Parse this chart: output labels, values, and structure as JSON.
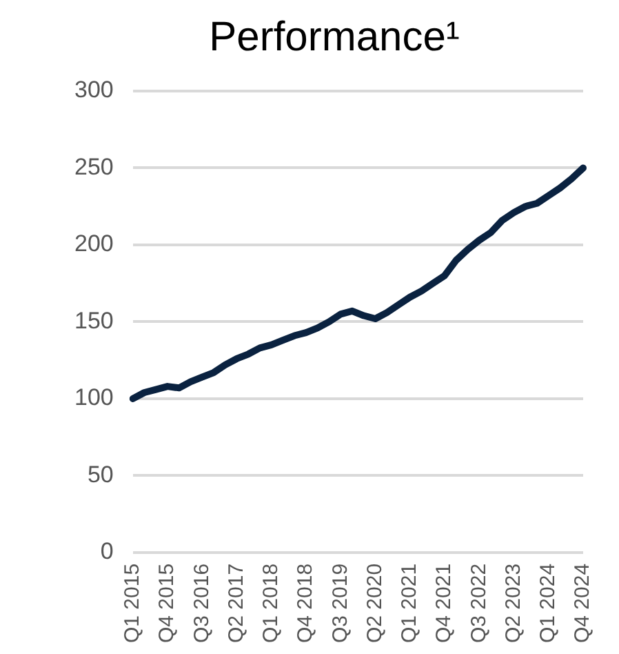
{
  "chart_data": {
    "type": "line",
    "title": "Performance¹",
    "categories": [
      "Q1 2015",
      null,
      null,
      "Q4 2015",
      null,
      null,
      "Q3 2016",
      null,
      null,
      "Q2 2017",
      null,
      null,
      "Q1 2018",
      null,
      null,
      "Q4 2018",
      null,
      null,
      "Q3 2019",
      null,
      null,
      "Q2 2020",
      null,
      null,
      "Q1 2021",
      null,
      null,
      "Q4 2021",
      null,
      null,
      "Q3 2022",
      null,
      null,
      "Q2 2023",
      null,
      null,
      "Q1 2024",
      null,
      null,
      "Q4 2024"
    ],
    "series": [
      {
        "color": "#0a2240",
        "values": [
          100,
          104,
          106,
          108,
          107,
          111,
          114,
          117,
          122,
          126,
          129,
          133,
          135,
          138,
          141,
          143,
          146,
          150,
          155,
          157,
          154,
          152,
          156,
          161,
          166,
          170,
          175,
          180,
          190,
          197,
          203,
          208,
          216,
          221,
          225,
          227,
          232,
          237,
          243,
          250
        ]
      }
    ],
    "ylim": [
      0,
      300
    ],
    "yticks": [
      0,
      50,
      100,
      150,
      200,
      250,
      300
    ],
    "grid": "y",
    "legend": false,
    "marker": "none",
    "line_style": "solid"
  }
}
